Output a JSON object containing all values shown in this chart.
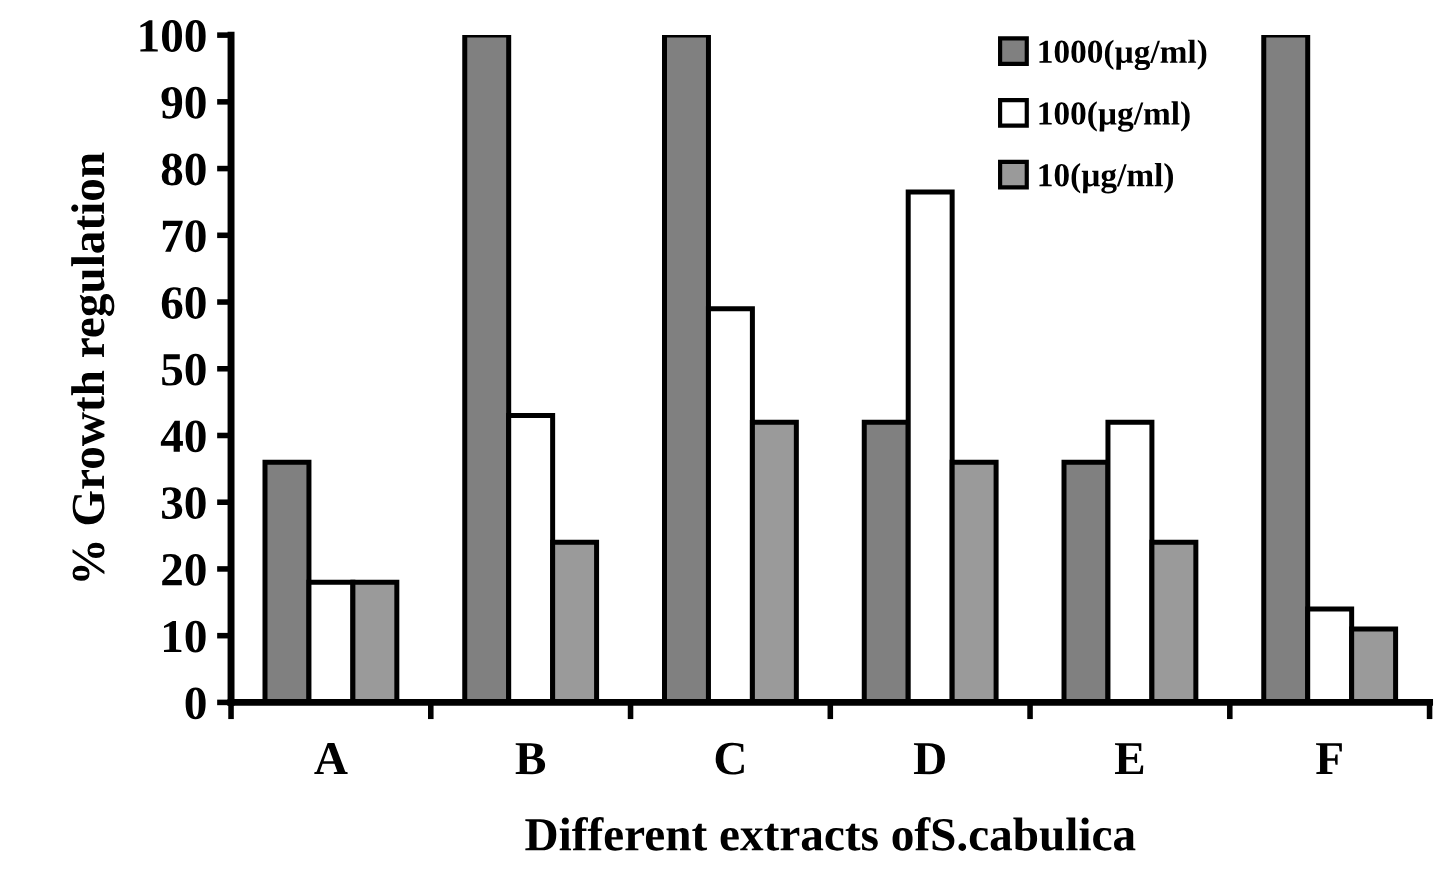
{
  "chart_data": {
    "type": "bar",
    "xlabel": "Different extracts ofS.cabulica",
    "ylabel": "% Growth regulation",
    "categories": [
      "A",
      "B",
      "C",
      "D",
      "E",
      "F"
    ],
    "series": [
      {
        "name": "1000(µg/ml)",
        "color": "#808080",
        "values": [
          36,
          100,
          100,
          42,
          36,
          100
        ]
      },
      {
        "name": "100(µg/ml)",
        "color": "#ffffff",
        "values": [
          18,
          43,
          59,
          76.5,
          42,
          14
        ]
      },
      {
        "name": "10(µg/ml)",
        "color": "#9a9a9a",
        "values": [
          18,
          24,
          42,
          36,
          24,
          11
        ]
      }
    ],
    "ylim": [
      0,
      100
    ],
    "yticks": [
      0,
      10,
      20,
      30,
      40,
      50,
      60,
      70,
      80,
      90,
      100
    ],
    "grid": false,
    "legend": "top right"
  }
}
